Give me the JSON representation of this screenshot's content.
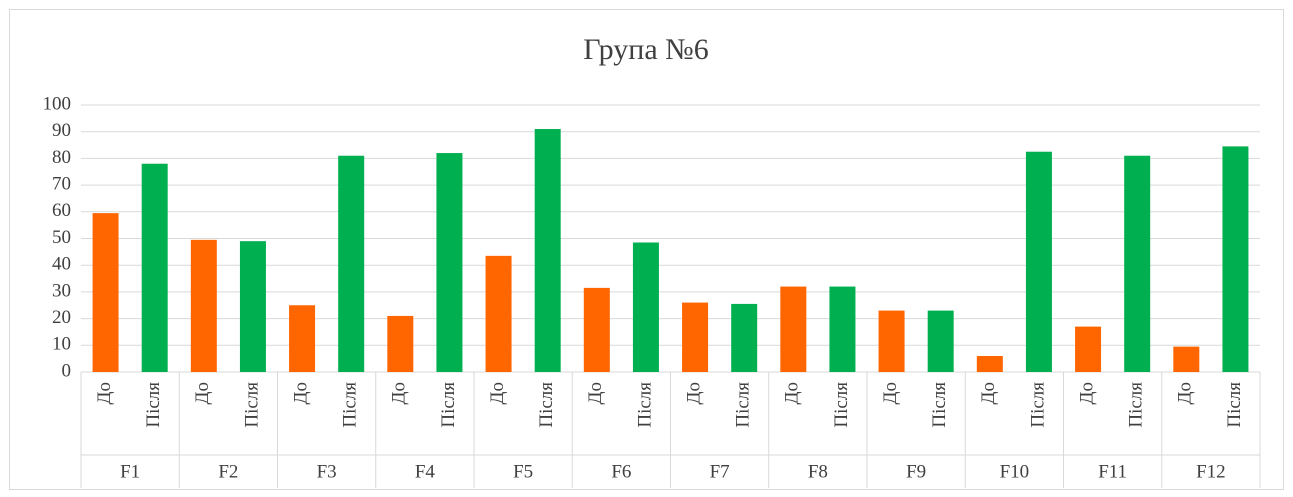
{
  "chart_data": {
    "type": "bar",
    "title": "Група №6",
    "categories": [
      "F1",
      "F2",
      "F3",
      "F4",
      "F5",
      "F6",
      "F7",
      "F8",
      "F9",
      "F10",
      "F11",
      "F12"
    ],
    "series": [
      {
        "name": "До",
        "color": "#ff6600",
        "values": [
          59.5,
          49.5,
          25,
          21,
          43.5,
          31.5,
          26,
          32,
          23,
          6,
          17,
          9.5
        ]
      },
      {
        "name": "Після",
        "color": "#00b050",
        "values": [
          78,
          49,
          81,
          82,
          91,
          48.5,
          25.5,
          32,
          23,
          82.5,
          81,
          84.5
        ]
      }
    ],
    "ylim": [
      0,
      100
    ],
    "yticks": [
      0,
      10,
      20,
      30,
      40,
      50,
      60,
      70,
      80,
      90,
      100
    ],
    "grid": true
  }
}
